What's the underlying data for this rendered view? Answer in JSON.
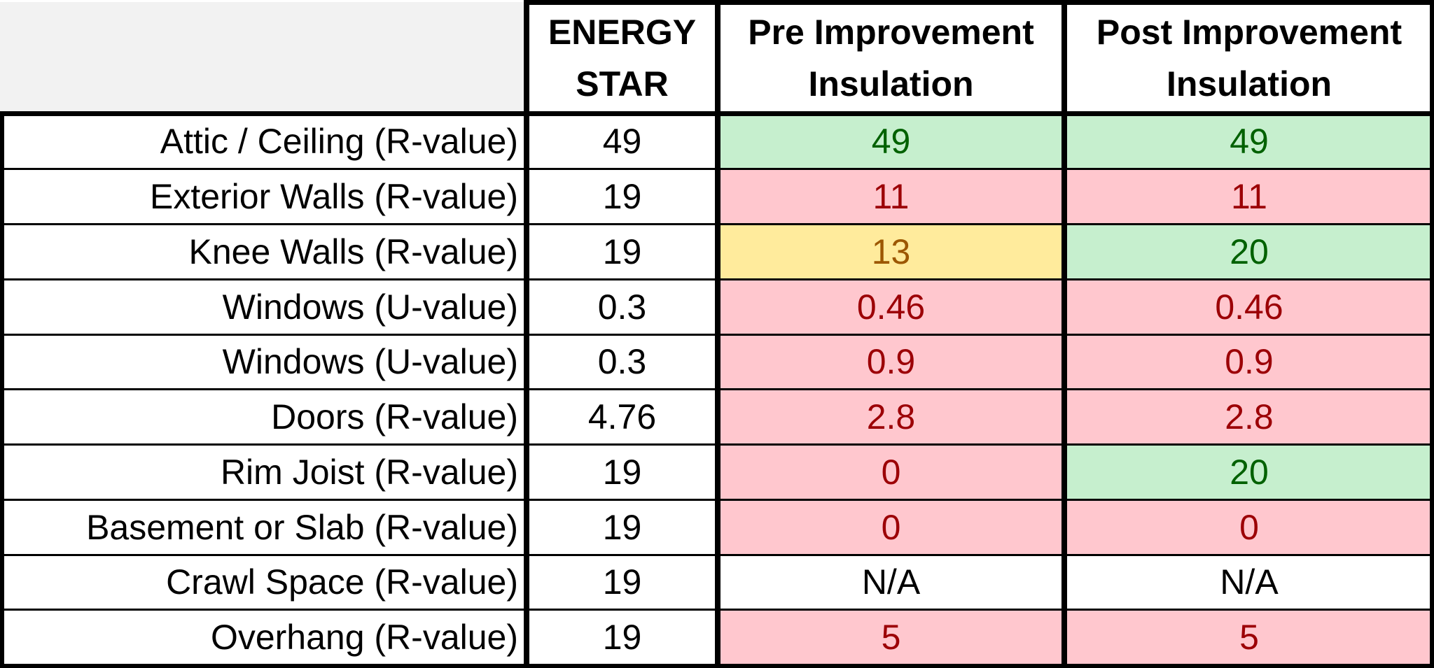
{
  "table": {
    "headers": [
      {
        "line1": "ENERGY",
        "line2": "STAR"
      },
      {
        "line1": "Pre Improvement",
        "line2": "Insulation"
      },
      {
        "line1": "Post Improvement",
        "line2": "Insulation"
      }
    ],
    "rows": [
      {
        "label": "Attic / Ceiling (R-value)",
        "energy_star": "49",
        "pre": "49",
        "post": "49",
        "pre_status": "good",
        "post_status": "good"
      },
      {
        "label": "Exterior Walls (R-value)",
        "energy_star": "19",
        "pre": "11",
        "post": "11",
        "pre_status": "bad",
        "post_status": "bad"
      },
      {
        "label": "Knee Walls (R-value)",
        "energy_star": "19",
        "pre": "13",
        "post": "20",
        "pre_status": "warn",
        "post_status": "good"
      },
      {
        "label": "Windows (U-value)",
        "energy_star": "0.3",
        "pre": "0.46",
        "post": "0.46",
        "pre_status": "bad",
        "post_status": "bad"
      },
      {
        "label": "Windows (U-value)",
        "energy_star": "0.3",
        "pre": "0.9",
        "post": "0.9",
        "pre_status": "bad",
        "post_status": "bad"
      },
      {
        "label": "Doors (R-value)",
        "energy_star": "4.76",
        "pre": "2.8",
        "post": "2.8",
        "pre_status": "bad",
        "post_status": "bad"
      },
      {
        "label": "Rim Joist (R-value)",
        "energy_star": "19",
        "pre": "0",
        "post": "20",
        "pre_status": "bad",
        "post_status": "good"
      },
      {
        "label": "Basement or Slab (R-value)",
        "energy_star": "19",
        "pre": "0",
        "post": "0",
        "pre_status": "bad",
        "post_status": "bad"
      },
      {
        "label": "Crawl Space (R-value)",
        "energy_star": "19",
        "pre": "N/A",
        "post": "N/A",
        "pre_status": "neutral",
        "post_status": "neutral"
      },
      {
        "label": "Overhang (R-value)",
        "energy_star": "19",
        "pre": "5",
        "post": "5",
        "pre_status": "bad",
        "post_status": "bad"
      }
    ]
  },
  "status_colors": {
    "good": {
      "fill": "#c6efce",
      "text": "#006100"
    },
    "bad": {
      "fill": "#ffc7ce",
      "text": "#9c0006"
    },
    "warn": {
      "fill": "#ffeb9c",
      "text": "#9c5700"
    },
    "neutral": {
      "fill": "#ffffff",
      "text": "#000000"
    }
  },
  "corner_fill": "#f2f2f2"
}
